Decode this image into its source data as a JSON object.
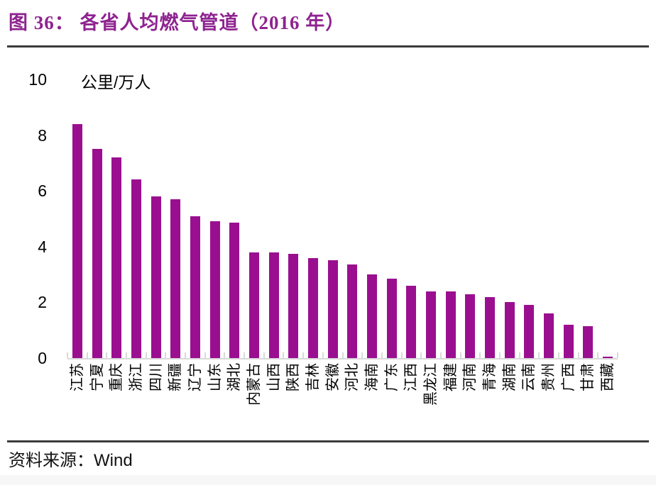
{
  "header": {
    "title": "图 36： 各省人均燃气管道（2016 年）"
  },
  "y_axis": {
    "unit_label": "公里/万人"
  },
  "footer": {
    "source_prefix": "资料来源：",
    "source_name": "Wind"
  },
  "colors": {
    "bar": "#9A0F90",
    "title": "#8E2390",
    "axis_line": "#D9D9D9",
    "rule": "#3B3B3B"
  },
  "chart_data": {
    "type": "bar",
    "title": "各省人均燃气管道（2016 年）",
    "xlabel": "",
    "ylabel": "公里/万人",
    "ylim": [
      0,
      10
    ],
    "y_ticks": [
      0,
      2,
      4,
      6,
      8,
      10
    ],
    "grid": false,
    "legend": "none",
    "bar_color": "#9A0F90",
    "categories": [
      "江苏",
      "宁夏",
      "重庆",
      "浙江",
      "四川",
      "新疆",
      "辽宁",
      "山东",
      "湖北",
      "内蒙古",
      "山西",
      "陕西",
      "吉林",
      "安徽",
      "河北",
      "海南",
      "广东",
      "江西",
      "黑龙江",
      "福建",
      "河南",
      "青海",
      "湖南",
      "云南",
      "贵州",
      "广西",
      "甘肃",
      "西藏"
    ],
    "values": [
      8.4,
      7.5,
      7.2,
      6.4,
      5.8,
      5.7,
      5.1,
      4.9,
      4.85,
      3.8,
      3.8,
      3.75,
      3.6,
      3.5,
      3.35,
      3.0,
      2.85,
      2.6,
      2.4,
      2.4,
      2.3,
      2.2,
      2.0,
      1.9,
      1.6,
      1.2,
      1.15,
      0.05
    ]
  }
}
